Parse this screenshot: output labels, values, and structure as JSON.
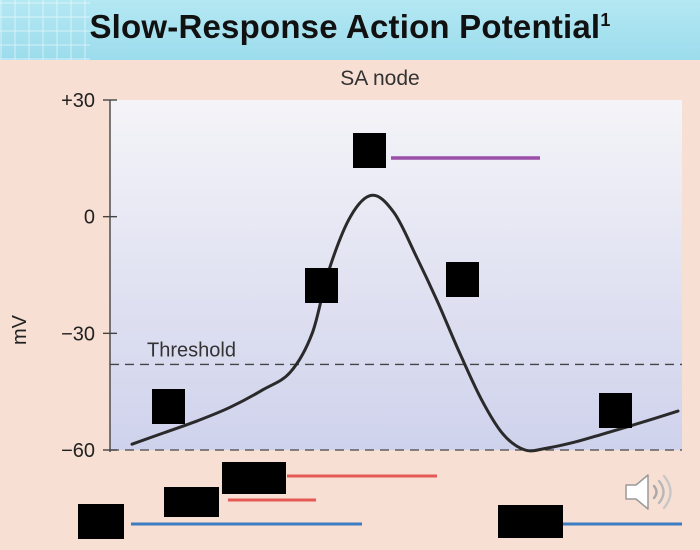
{
  "header": {
    "title": "Slow-Response Action Potential",
    "footnote_marker": "1"
  },
  "chart_data": {
    "type": "line",
    "title": "SA node",
    "ylabel": "mV",
    "ylim": [
      -60,
      30
    ],
    "yticks": [
      {
        "value": 30,
        "label": "+30"
      },
      {
        "value": 0,
        "label": "0"
      },
      {
        "value": -30,
        "label": "−30"
      },
      {
        "value": -60,
        "label": "−60"
      }
    ],
    "threshold": {
      "value": -38,
      "label": "Threshold"
    },
    "baseline": -60,
    "series": [
      {
        "x": [
          0,
          6,
          12,
          18,
          24,
          29,
          33,
          36,
          40,
          44,
          48,
          52,
          56,
          60,
          64,
          68,
          72,
          76,
          81,
          86,
          92,
          100
        ],
        "y": [
          -58.5,
          -55.5,
          -52.5,
          -49,
          -44.5,
          -40,
          -30,
          -14,
          0,
          5.5,
          1,
          -10,
          -22,
          -35,
          -47,
          -56,
          -60,
          -59.5,
          -58,
          -56,
          -53.5,
          -50
        ]
      }
    ],
    "colors": {
      "curve": "#2a2a2a",
      "purple_bar": "#9b4fa8",
      "red_bar": "#e35a55",
      "blue_bar": "#3b7cc2",
      "plot_bg_top": "#f4f4f8",
      "plot_bg_bottom": "#cfd2ec"
    }
  }
}
